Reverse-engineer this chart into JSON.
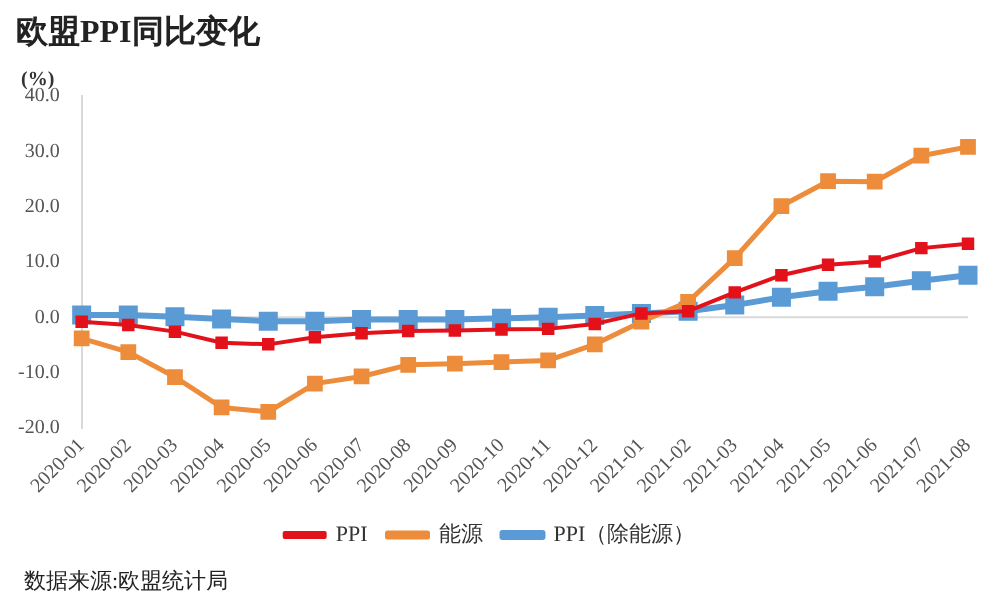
{
  "chart_data": {
    "type": "line",
    "title": "欧盟PPI同比变化",
    "ylabel": "(%)",
    "categories": [
      "2020-01",
      "2020-02",
      "2020-03",
      "2020-04",
      "2020-05",
      "2020-06",
      "2020-07",
      "2020-08",
      "2020-09",
      "2020-10",
      "2020-11",
      "2020-12",
      "2021-01",
      "2021-02",
      "2021-03",
      "2021-04",
      "2021-05",
      "2021-06",
      "2021-07",
      "2021-08"
    ],
    "series": [
      {
        "name": "PPI",
        "color": "#e3111a",
        "values": [
          -0.8,
          -1.4,
          -2.6,
          -4.6,
          -4.9,
          -3.6,
          -2.9,
          -2.5,
          -2.4,
          -2.2,
          -2.1,
          -1.2,
          0.7,
          1.1,
          4.5,
          7.6,
          9.5,
          10.1,
          12.5,
          13.3
        ]
      },
      {
        "name": "能源",
        "color": "#ed8c3a",
        "values": [
          -3.8,
          -6.3,
          -10.8,
          -16.3,
          -17.1,
          -12.0,
          -10.7,
          -8.6,
          -8.4,
          -8.1,
          -7.8,
          -4.9,
          -0.8,
          2.8,
          10.7,
          20.1,
          24.6,
          24.5,
          29.2,
          30.8
        ]
      },
      {
        "name": "PPI（除能源）",
        "color": "#5b9bd5",
        "values": [
          0.4,
          0.4,
          0.1,
          -0.3,
          -0.7,
          -0.7,
          -0.4,
          -0.4,
          -0.4,
          -0.2,
          0.0,
          0.3,
          0.7,
          1.1,
          2.2,
          3.6,
          4.7,
          5.5,
          6.6,
          7.6
        ]
      }
    ],
    "ylim": [
      -20,
      40
    ],
    "yticks": [
      {
        "value": -20,
        "label": "-20.0"
      },
      {
        "value": -10,
        "label": "-10.0"
      },
      {
        "value": 0,
        "label": "0.0"
      },
      {
        "value": 10,
        "label": "10.0"
      },
      {
        "value": 20,
        "label": "20.0"
      },
      {
        "value": 30,
        "label": "30.0"
      },
      {
        "value": 40,
        "label": "40.0"
      }
    ],
    "ref_lines": [
      {
        "axis": "y",
        "value": 0,
        "color": "#d9d9d9"
      }
    ],
    "marker": "square",
    "legend": "bottom",
    "annotations": [
      "数据来源:欧盟统计局"
    ]
  }
}
